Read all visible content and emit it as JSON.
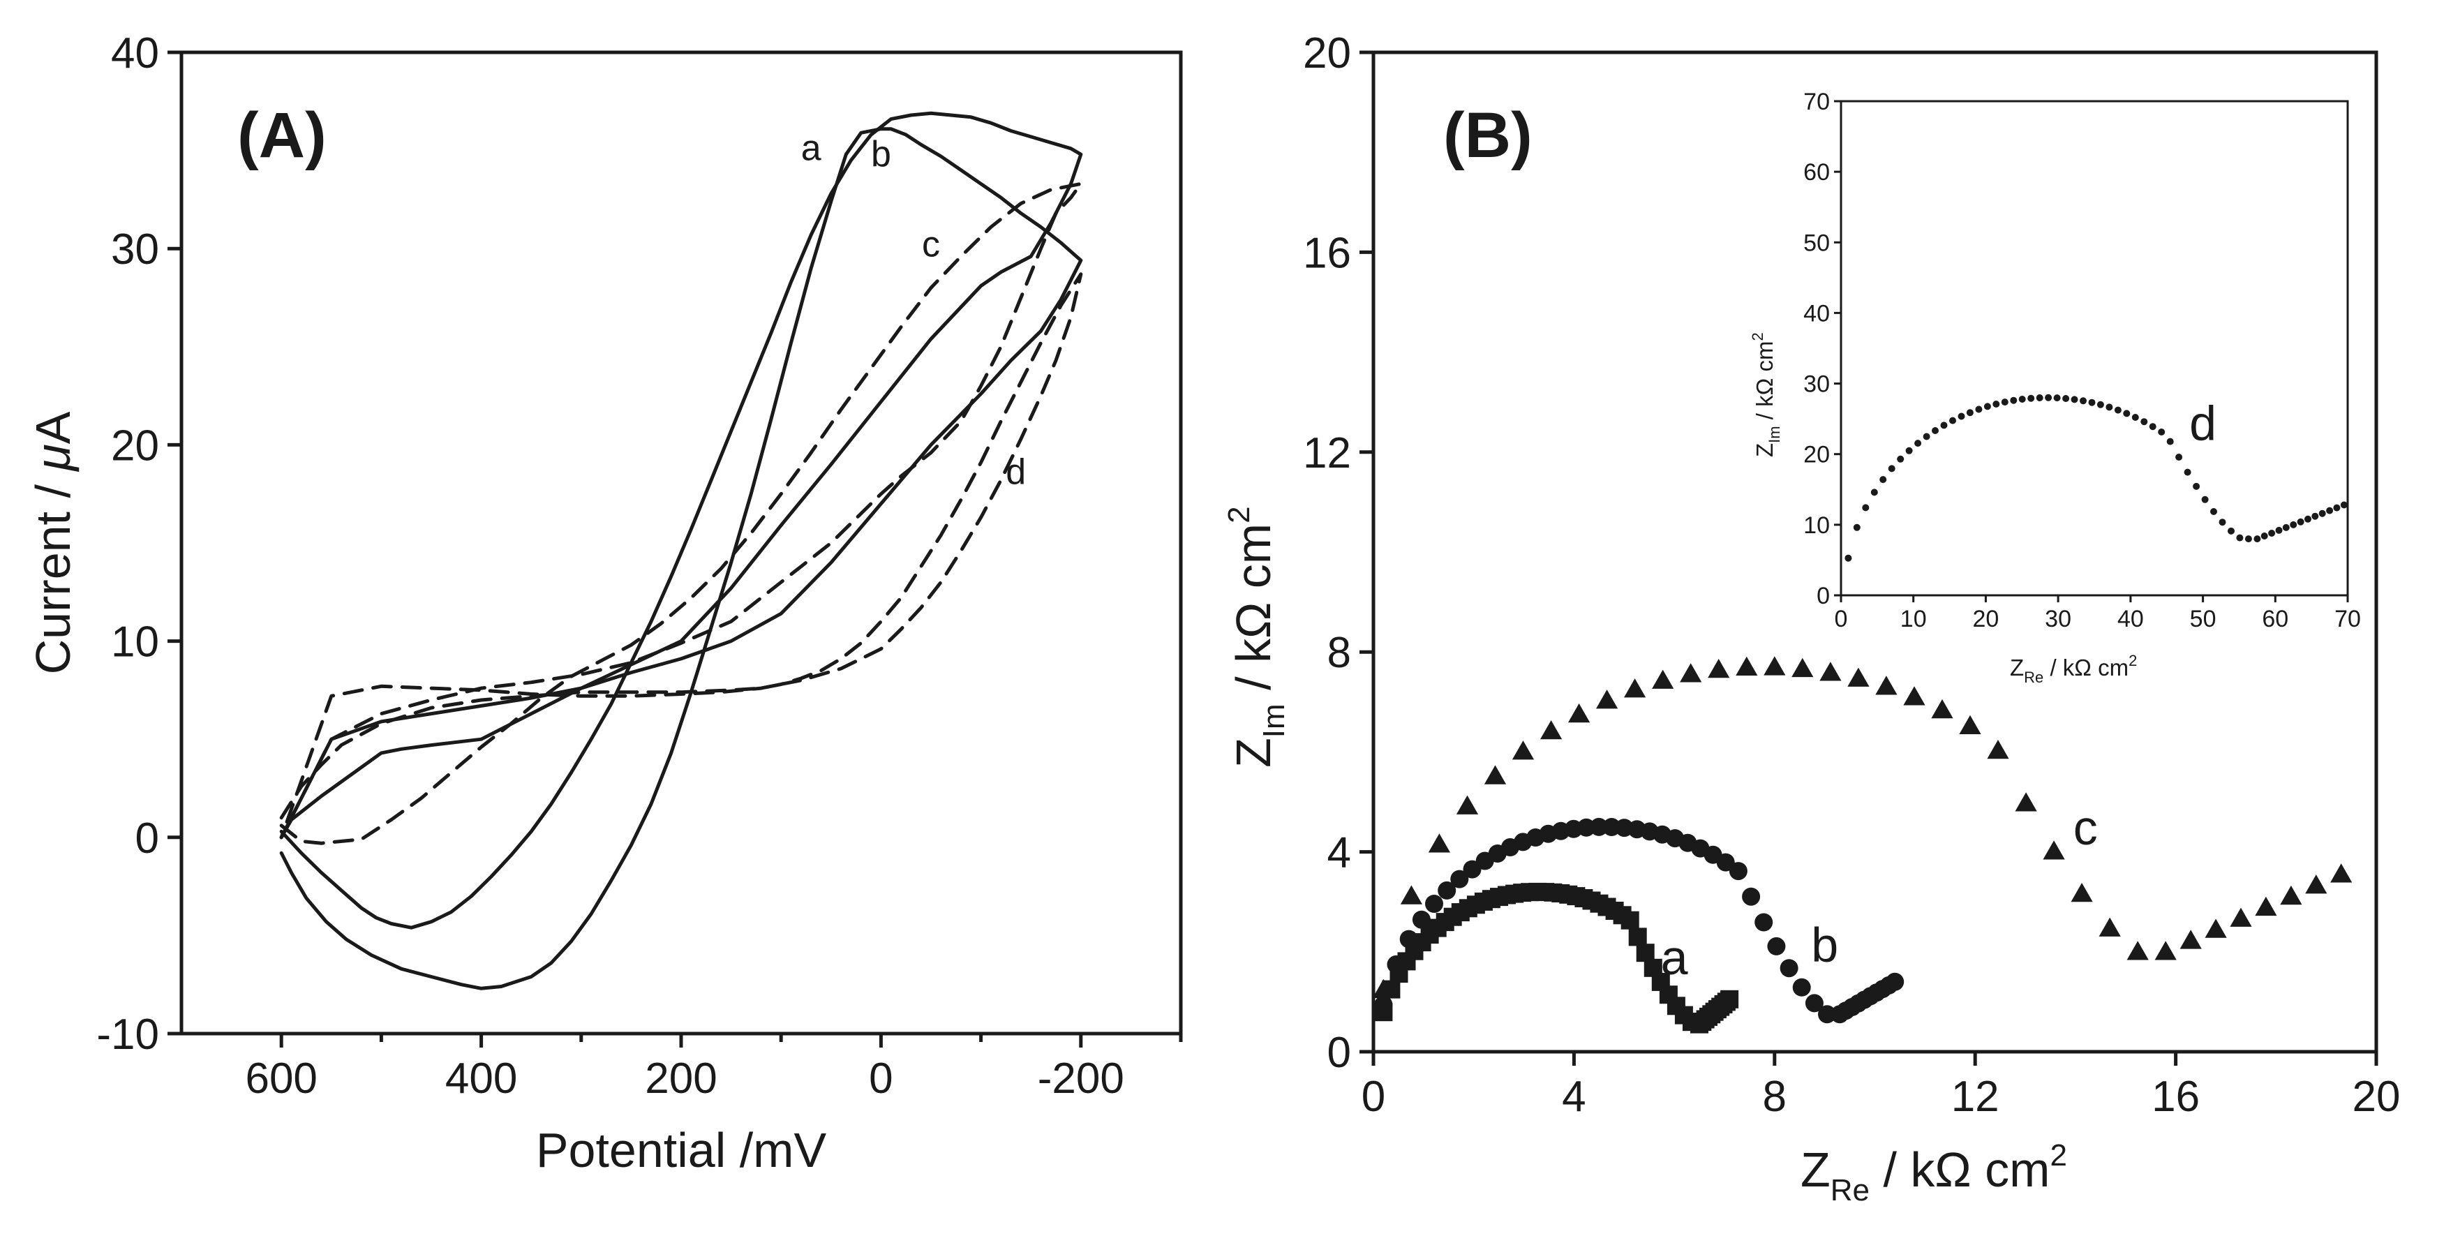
{
  "chart_data": [
    {
      "type": "line",
      "panel": "(A)",
      "xlabel": "Potential /mV",
      "ylabel_parts": [
        "Current / ",
        "μ",
        "A"
      ],
      "xlim": [
        700,
        -300
      ],
      "ylim": [
        -10,
        40
      ],
      "x_ticks": [
        600,
        400,
        200,
        0,
        -200
      ],
      "x_tick_labels": [
        "600",
        "400",
        "200",
        "0",
        "-200"
      ],
      "y_ticks": [
        -10,
        0,
        10,
        20,
        30,
        40
      ],
      "y_tick_labels": [
        "-10",
        "0",
        "10",
        "20",
        "30",
        "40"
      ],
      "series": [
        {
          "name": "a",
          "style": "solid",
          "x": [
            600,
            590,
            575,
            555,
            535,
            510,
            480,
            450,
            420,
            400,
            380,
            350,
            330,
            310,
            290,
            270,
            250,
            230,
            210,
            190,
            170,
            150,
            130,
            110,
            90,
            70,
            50,
            35,
            20,
            0,
            -10,
            -25,
            -40,
            -60,
            -80,
            -100,
            -120,
            -140,
            -160,
            -180,
            -200,
            -180,
            -160,
            -130,
            -100,
            -50,
            0,
            50,
            100,
            150,
            200,
            250,
            300,
            350,
            400,
            450,
            500,
            550,
            600
          ],
          "y": [
            -0.8,
            -1.8,
            -3.1,
            -4.3,
            -5.2,
            -6.0,
            -6.7,
            -7.1,
            -7.5,
            -7.7,
            -7.6,
            -7.1,
            -6.4,
            -5.3,
            -3.9,
            -2.2,
            -0.4,
            1.7,
            4.3,
            7.4,
            10.7,
            14.0,
            17.5,
            21.3,
            25.2,
            29.0,
            32.4,
            34.8,
            35.9,
            36.1,
            36.1,
            35.8,
            35.3,
            34.7,
            34.0,
            33.3,
            32.6,
            31.8,
            31.1,
            30.3,
            29.4,
            27.4,
            25.8,
            24.3,
            22.6,
            20.0,
            17.0,
            14.0,
            11.4,
            10.0,
            9.1,
            8.4,
            7.6,
            7.1,
            6.7,
            6.3,
            5.9,
            5.0,
            0
          ]
        },
        {
          "name": "b",
          "style": "solid",
          "x": [
            600,
            580,
            560,
            540,
            520,
            505,
            490,
            470,
            450,
            430,
            410,
            390,
            370,
            350,
            330,
            310,
            290,
            270,
            250,
            230,
            210,
            190,
            170,
            150,
            130,
            110,
            90,
            70,
            50,
            30,
            10,
            -10,
            -30,
            -50,
            -70,
            -90,
            -110,
            -130,
            -150,
            -170,
            -190,
            -200,
            -190,
            -170,
            -150,
            -120,
            -100,
            -50,
            0,
            50,
            100,
            150,
            200,
            250,
            300,
            350,
            400,
            450,
            480,
            500,
            530,
            560,
            590,
            600
          ],
          "y": [
            0.3,
            -0.8,
            -1.8,
            -2.7,
            -3.6,
            -4.1,
            -4.4,
            -4.6,
            -4.3,
            -3.8,
            -3.0,
            -2.0,
            -0.9,
            0.3,
            1.7,
            3.3,
            5.0,
            6.8,
            8.9,
            11.0,
            13.3,
            15.7,
            18.2,
            20.7,
            23.2,
            25.7,
            28.3,
            30.7,
            32.8,
            34.5,
            35.8,
            36.6,
            36.8,
            36.9,
            36.8,
            36.7,
            36.4,
            36.0,
            35.7,
            35.4,
            35.1,
            34.8,
            33.3,
            31.3,
            29.6,
            28.8,
            28.1,
            25.4,
            22.2,
            19.0,
            15.9,
            12.7,
            10.0,
            8.8,
            7.6,
            6.3,
            5.0,
            4.7,
            4.5,
            4.3,
            3.2,
            2.1,
            0.9,
            0
          ]
        },
        {
          "name": "c",
          "style": "dashed",
          "x": [
            600,
            580,
            560,
            520,
            490,
            460,
            430,
            400,
            370,
            340,
            310,
            280,
            250,
            220,
            190,
            160,
            130,
            100,
            70,
            40,
            10,
            -20,
            -50,
            -80,
            -110,
            -140,
            -170,
            -200,
            -190,
            -175,
            -160,
            -140,
            -120,
            -100,
            -80,
            -50,
            -20,
            0,
            50,
            100,
            150,
            200,
            250,
            300,
            350,
            400,
            450,
            500,
            550,
            600
          ],
          "y": [
            0.6,
            -0.2,
            -0.3,
            -0.1,
            0.9,
            2.0,
            3.3,
            4.6,
            5.8,
            7.1,
            8.2,
            9.0,
            9.8,
            10.9,
            12.2,
            13.7,
            15.5,
            17.5,
            19.6,
            21.8,
            23.9,
            26.0,
            28.0,
            29.6,
            31.1,
            32.3,
            33.0,
            33.3,
            32.6,
            31.8,
            30.0,
            27.5,
            25.0,
            23.0,
            21.2,
            19.6,
            18.4,
            17.5,
            15.0,
            13.0,
            11.0,
            9.9,
            8.9,
            8.3,
            7.9,
            7.6,
            7.0,
            6.3,
            5.0,
            0
          ]
        },
        {
          "name": "d",
          "style": "dashed",
          "x": [
            600,
            580,
            560,
            540,
            500,
            450,
            400,
            350,
            300,
            250,
            200,
            150,
            120,
            100,
            80,
            60,
            40,
            20,
            0,
            -20,
            -40,
            -60,
            -80,
            -100,
            -120,
            -140,
            -160,
            -180,
            -200,
            -190,
            -175,
            -160,
            -140,
            -120,
            -100,
            -80,
            -60,
            -40,
            -20,
            0,
            40,
            80,
            120,
            160,
            200,
            250,
            300,
            350,
            400,
            450,
            500,
            550,
            600
          ],
          "y": [
            1.0,
            2.6,
            3.7,
            4.7,
            5.8,
            6.6,
            7.0,
            7.2,
            7.4,
            7.4,
            7.4,
            7.5,
            7.6,
            7.8,
            8.1,
            8.5,
            9.1,
            9.9,
            11.0,
            12.2,
            13.8,
            15.4,
            17.2,
            19.1,
            21.2,
            23.2,
            25.2,
            27.1,
            28.7,
            26.5,
            24.3,
            22.5,
            20.3,
            18.2,
            16.3,
            14.6,
            13.0,
            11.7,
            10.6,
            9.6,
            8.6,
            8.0,
            7.6,
            7.4,
            7.3,
            7.2,
            7.2,
            7.3,
            7.5,
            7.6,
            7.7,
            7.2,
            0
          ]
        }
      ],
      "labels": [
        {
          "text": "a",
          "x": 70,
          "y": 34.5
        },
        {
          "text": "b",
          "x": 0,
          "y": 34.2
        },
        {
          "text": "c",
          "x": -50,
          "y": 29.6
        },
        {
          "text": "d",
          "x": -135,
          "y": 18.0
        }
      ]
    },
    {
      "type": "scatter",
      "panel": "(B)",
      "xlabel_parts": {
        "main": "Z",
        "sub": "Re",
        "rest": " / kΩ cm",
        "sup": "2"
      },
      "ylabel_parts": {
        "main": "Z",
        "sub": "Im",
        "rest": " / kΩ cm",
        "sup": "2"
      },
      "xlim": [
        0,
        20
      ],
      "ylim": [
        0,
        20
      ],
      "x_ticks": [
        0,
        4,
        8,
        12,
        16,
        20
      ],
      "x_tick_labels": [
        "0",
        "4",
        "8",
        "12",
        "16",
        "20"
      ],
      "y_ticks": [
        0,
        4,
        8,
        12,
        16,
        20
      ],
      "y_tick_labels": [
        "0",
        "4",
        "8",
        "12",
        "16",
        "20"
      ],
      "series": [
        {
          "name": "a",
          "marker": "square",
          "center_x": 3.3,
          "radius": 3.2,
          "r0": 0.1,
          "kink_x": 6.5,
          "kink_y": 0.55,
          "tail_end_x": 7.1,
          "tail_end_y": 1.05,
          "points": 52
        },
        {
          "name": "b",
          "marker": "circle",
          "center_x": 4.6,
          "radius": 4.5,
          "r0": 0.1,
          "kink_x": 9.3,
          "kink_y": 0.75,
          "tail_end_x": 10.4,
          "tail_end_y": 1.4,
          "points": 46
        },
        {
          "name": "c",
          "marker": "triangle",
          "center_x": 7.8,
          "radius": 7.7,
          "r0": 0.1,
          "kink_x": 15.8,
          "kink_y": 2.0,
          "tail_end_x": 19.3,
          "tail_end_y": 3.55,
          "points": 36
        }
      ],
      "labels": [
        {
          "text": "a",
          "x": 6.0,
          "y": 1.55
        },
        {
          "text": "b",
          "x": 9.0,
          "y": 1.8
        },
        {
          "text": "c",
          "x": 14.2,
          "y": 4.15
        }
      ],
      "inset": {
        "xlabel_parts": {
          "main": "Z",
          "sub": "Re",
          "rest": " / kΩ cm",
          "sup": "2"
        },
        "ylabel_parts": {
          "main": "Z",
          "sub": "Im",
          "rest": " / kΩ cm",
          "sup": "2"
        },
        "xlim": [
          0,
          70
        ],
        "ylim": [
          0,
          70
        ],
        "x_ticks": [
          0,
          10,
          20,
          30,
          40,
          50,
          60,
          70
        ],
        "x_tick_labels": [
          "0",
          "10",
          "20",
          "30",
          "40",
          "50",
          "60",
          "70"
        ],
        "y_ticks": [
          0,
          10,
          20,
          30,
          40,
          50,
          60,
          70
        ],
        "y_tick_labels": [
          "0",
          "10",
          "20",
          "30",
          "40",
          "50",
          "60",
          "70"
        ],
        "series": [
          {
            "name": "d",
            "marker": "circle",
            "center_x": 28.5,
            "radius": 28.0,
            "r0": 0.5,
            "kink_x": 57.5,
            "kink_y": 8.0,
            "tail_end_x": 69.5,
            "tail_end_y": 12.8,
            "points": 60
          }
        ],
        "labels": [
          {
            "text": "d",
            "x": 50,
            "y": 22
          }
        ]
      }
    }
  ]
}
